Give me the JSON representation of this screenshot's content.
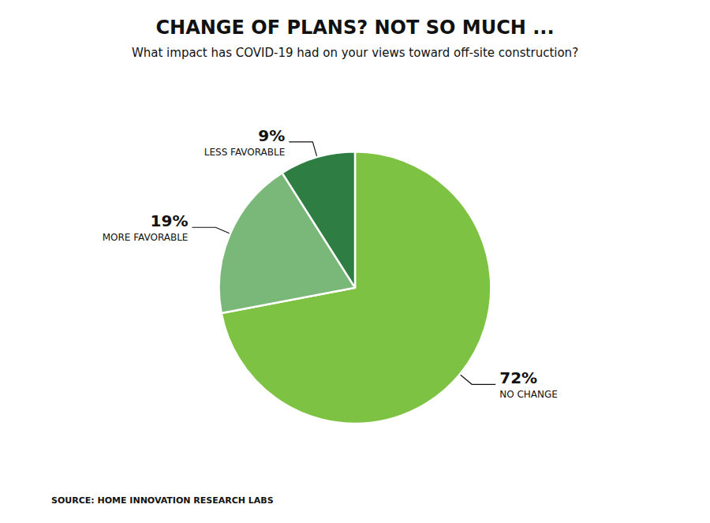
{
  "chart_data": {
    "type": "pie",
    "title": "CHANGE OF PLANS? NOT SO MUCH ...",
    "subtitle": "What impact has COVID-19 had on your views toward off-site construction?",
    "source": "SOURCE: HOME INNOVATION RESEARCH LABS",
    "categories": [
      "NO CHANGE",
      "MORE FAVORABLE",
      "LESS FAVORABLE"
    ],
    "values": [
      72,
      19,
      9
    ],
    "value_labels": [
      "72%",
      "19%",
      "9%"
    ],
    "colors": [
      "#7dc242",
      "#7ab87a",
      "#2e7d42"
    ],
    "data_labels": true,
    "legend": false
  }
}
